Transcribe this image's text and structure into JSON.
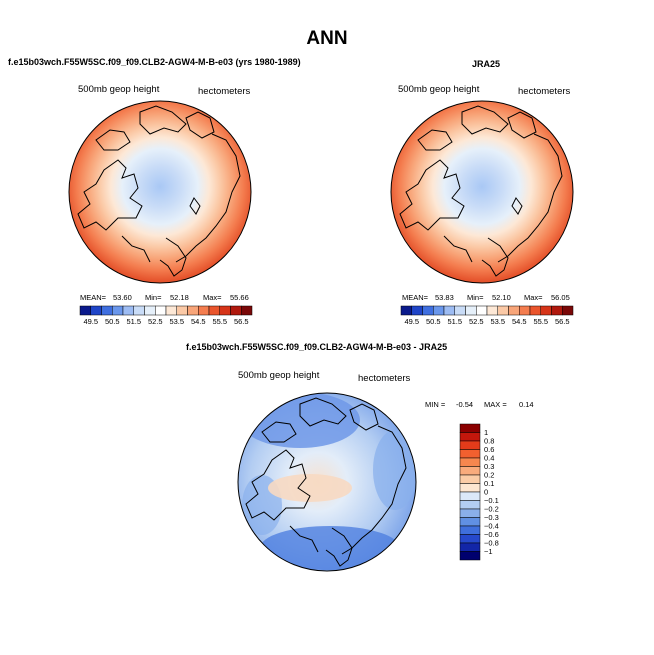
{
  "title": "ANN",
  "panels": [
    {
      "title": "f.e15b03wch.F55W5SC.f09_f09.CLB2-AGW4-M-B-e03 (yrs 1980-1989)",
      "variable_label": "500mb geop height",
      "units_label": "hectometers",
      "stats": {
        "mean_label": "MEAN=",
        "mean": "53.60",
        "min_label": "Min=",
        "min": "52.18",
        "max_label": "Max=",
        "max": "55.66"
      }
    },
    {
      "title": "JRA25",
      "variable_label": "500mb geop height",
      "units_label": "hectometers",
      "stats": {
        "mean_label": "MEAN=",
        "mean": "53.83",
        "min_label": "Min=",
        "min": "52.10",
        "max_label": "Max=",
        "max": "56.05"
      }
    },
    {
      "title": "f.e15b03wch.F55W5SC.f09_f09.CLB2-AGW4-M-B-e03 - JRA25",
      "variable_label": "500mb geop height",
      "units_label": "hectometers",
      "stats": {
        "min_label": "MIN =",
        "min": "-0.54",
        "max_label": "MAX =",
        "max": "0.14"
      }
    }
  ],
  "field_colorbar": {
    "labels": [
      "49.5",
      "50.5",
      "51.5",
      "52.5",
      "53.5",
      "54.5",
      "55.5",
      "56.5"
    ],
    "colors": [
      "#0a1a8c",
      "#1f45c8",
      "#3f6fe0",
      "#6a97ec",
      "#9dbcf3",
      "#c9dcf7",
      "#e6f0fa",
      "#ffffff",
      "#fde8d6",
      "#fbc9a6",
      "#f8a579",
      "#f47d4f",
      "#ea552c",
      "#d63418",
      "#b0190e",
      "#7a0808"
    ]
  },
  "diff_colorbar": {
    "labels": [
      "1",
      "0.8",
      "0.6",
      "0.4",
      "0.3",
      "0.2",
      "0.1",
      "0",
      "−0.1",
      "−0.2",
      "−0.3",
      "−0.4",
      "−0.6",
      "−0.8",
      "−1"
    ],
    "colors": [
      "#8b0000",
      "#c4170c",
      "#e33b1a",
      "#f2602f",
      "#f6874f",
      "#f9ab7c",
      "#fbcca6",
      "#fde6d0",
      "#dbe8f8",
      "#b3cdf2",
      "#8aafea",
      "#6090e3",
      "#3f6fdc",
      "#2649cc",
      "#1226a8",
      "#00006e"
    ]
  },
  "chart_data": [
    {
      "type": "heatmap",
      "title": "f.e15b03wch.F55W5SC.f09_f09.CLB2-AGW4-M-B-e03 (yrs 1980-1989)",
      "projection": "north polar stereographic",
      "variable": "500mb geop height",
      "units": "hectometers",
      "levels": [
        49.5,
        50.5,
        51.5,
        52.5,
        53.5,
        54.5,
        55.5,
        56.5
      ],
      "mean": 53.6,
      "min": 52.18,
      "max": 55.66
    },
    {
      "type": "heatmap",
      "title": "JRA25",
      "projection": "north polar stereographic",
      "variable": "500mb geop height",
      "units": "hectometers",
      "levels": [
        49.5,
        50.5,
        51.5,
        52.5,
        53.5,
        54.5,
        55.5,
        56.5
      ],
      "mean": 53.83,
      "min": 52.1,
      "max": 56.05
    },
    {
      "type": "heatmap",
      "title": "f.e15b03wch.F55W5SC.f09_f09.CLB2-AGW4-M-B-e03 - JRA25",
      "projection": "north polar stereographic",
      "variable": "500mb geop height",
      "units": "hectometers",
      "levels": [
        -1,
        -0.8,
        -0.6,
        -0.4,
        -0.3,
        -0.2,
        -0.1,
        0,
        0.1,
        0.2,
        0.3,
        0.4,
        0.6,
        0.8,
        1
      ],
      "min": -0.54,
      "max": 0.14
    }
  ]
}
